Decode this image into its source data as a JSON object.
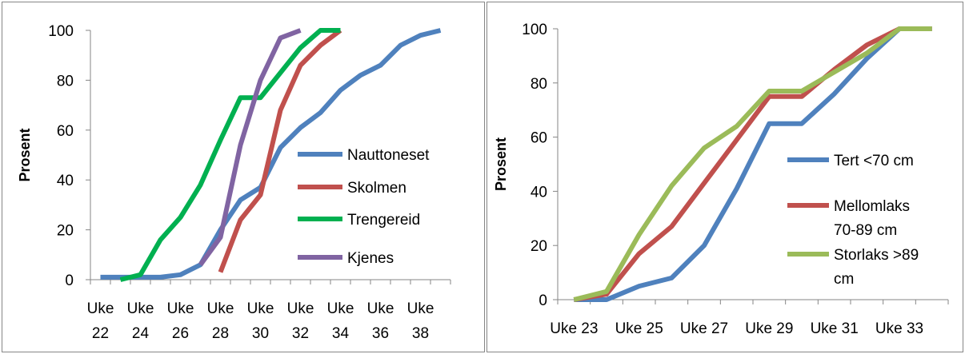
{
  "chart_data": [
    {
      "type": "line",
      "ylabel": "Prosent",
      "ylim": [
        0,
        100
      ],
      "yticks": [
        "0",
        "20",
        "40",
        "60",
        "80",
        "100"
      ],
      "x": [
        22,
        23,
        24,
        25,
        26,
        27,
        28,
        29,
        30,
        31,
        32,
        33,
        34,
        35,
        36,
        37,
        38,
        39
      ],
      "xtick_lines": [
        [
          "Uke",
          "22"
        ],
        [
          "Uke",
          "24"
        ],
        [
          "Uke",
          "26"
        ],
        [
          "Uke",
          "28"
        ],
        [
          "Uke",
          "30"
        ],
        [
          "Uke",
          "32"
        ],
        [
          "Uke",
          "34"
        ],
        [
          "Uke",
          "36"
        ],
        [
          "Uke",
          "38"
        ]
      ],
      "grid": false,
      "legend_position": "right",
      "series": [
        {
          "name": "Nauttoneset",
          "color": "#4f81bd",
          "values": [
            1,
            1,
            1,
            1,
            2,
            6,
            20,
            32,
            37,
            53,
            61,
            67,
            76,
            82,
            86,
            94,
            98,
            100
          ]
        },
        {
          "name": "Skolmen",
          "color": "#c0504d",
          "values": [
            null,
            null,
            null,
            null,
            null,
            null,
            3,
            24,
            34,
            68,
            86,
            94,
            100,
            null,
            null,
            null,
            null,
            null
          ]
        },
        {
          "name": "Trengereid",
          "color": "#00b050",
          "values": [
            null,
            0,
            2,
            16,
            25,
            38,
            56,
            73,
            73,
            83,
            93,
            100,
            100,
            null,
            null,
            null,
            null,
            null
          ]
        },
        {
          "name": "Kjenes",
          "color": "#8064a2",
          "values": [
            null,
            null,
            null,
            null,
            null,
            6,
            17,
            54,
            80,
            97,
            100,
            null,
            null,
            null,
            null,
            null,
            null,
            null
          ]
        }
      ]
    },
    {
      "type": "line",
      "ylabel": "Prosent",
      "ylim": [
        0,
        100
      ],
      "yticks": [
        "0",
        "20",
        "40",
        "60",
        "80",
        "100"
      ],
      "x": [
        23,
        24,
        25,
        26,
        27,
        28,
        29,
        30,
        31,
        32,
        33,
        34
      ],
      "xtick_labels": [
        "Uke 23",
        "Uke 25",
        "Uke 27",
        "Uke 29",
        "Uke 31",
        "Uke 33"
      ],
      "grid": false,
      "legend_position": "right",
      "series": [
        {
          "name": "Tert <70 cm",
          "name_lines": [
            "Tert <70 cm"
          ],
          "color": "#4f81bd",
          "values": [
            0,
            0,
            5,
            8,
            20,
            41,
            65,
            65,
            76,
            89,
            100,
            100
          ]
        },
        {
          "name": "Mellomlaks 70-89 cm",
          "name_lines": [
            "Mellomlaks",
            "70-89 cm"
          ],
          "color": "#c0504d",
          "values": [
            0,
            2,
            17,
            27,
            43,
            59,
            75,
            75,
            85,
            94,
            100,
            100
          ]
        },
        {
          "name": "Storlaks >89 cm",
          "name_lines": [
            "Storlaks >89",
            "cm"
          ],
          "color": "#9bbb59",
          "values": [
            0,
            3,
            24,
            42,
            56,
            64,
            77,
            77,
            84,
            91,
            100,
            100
          ]
        }
      ]
    }
  ]
}
